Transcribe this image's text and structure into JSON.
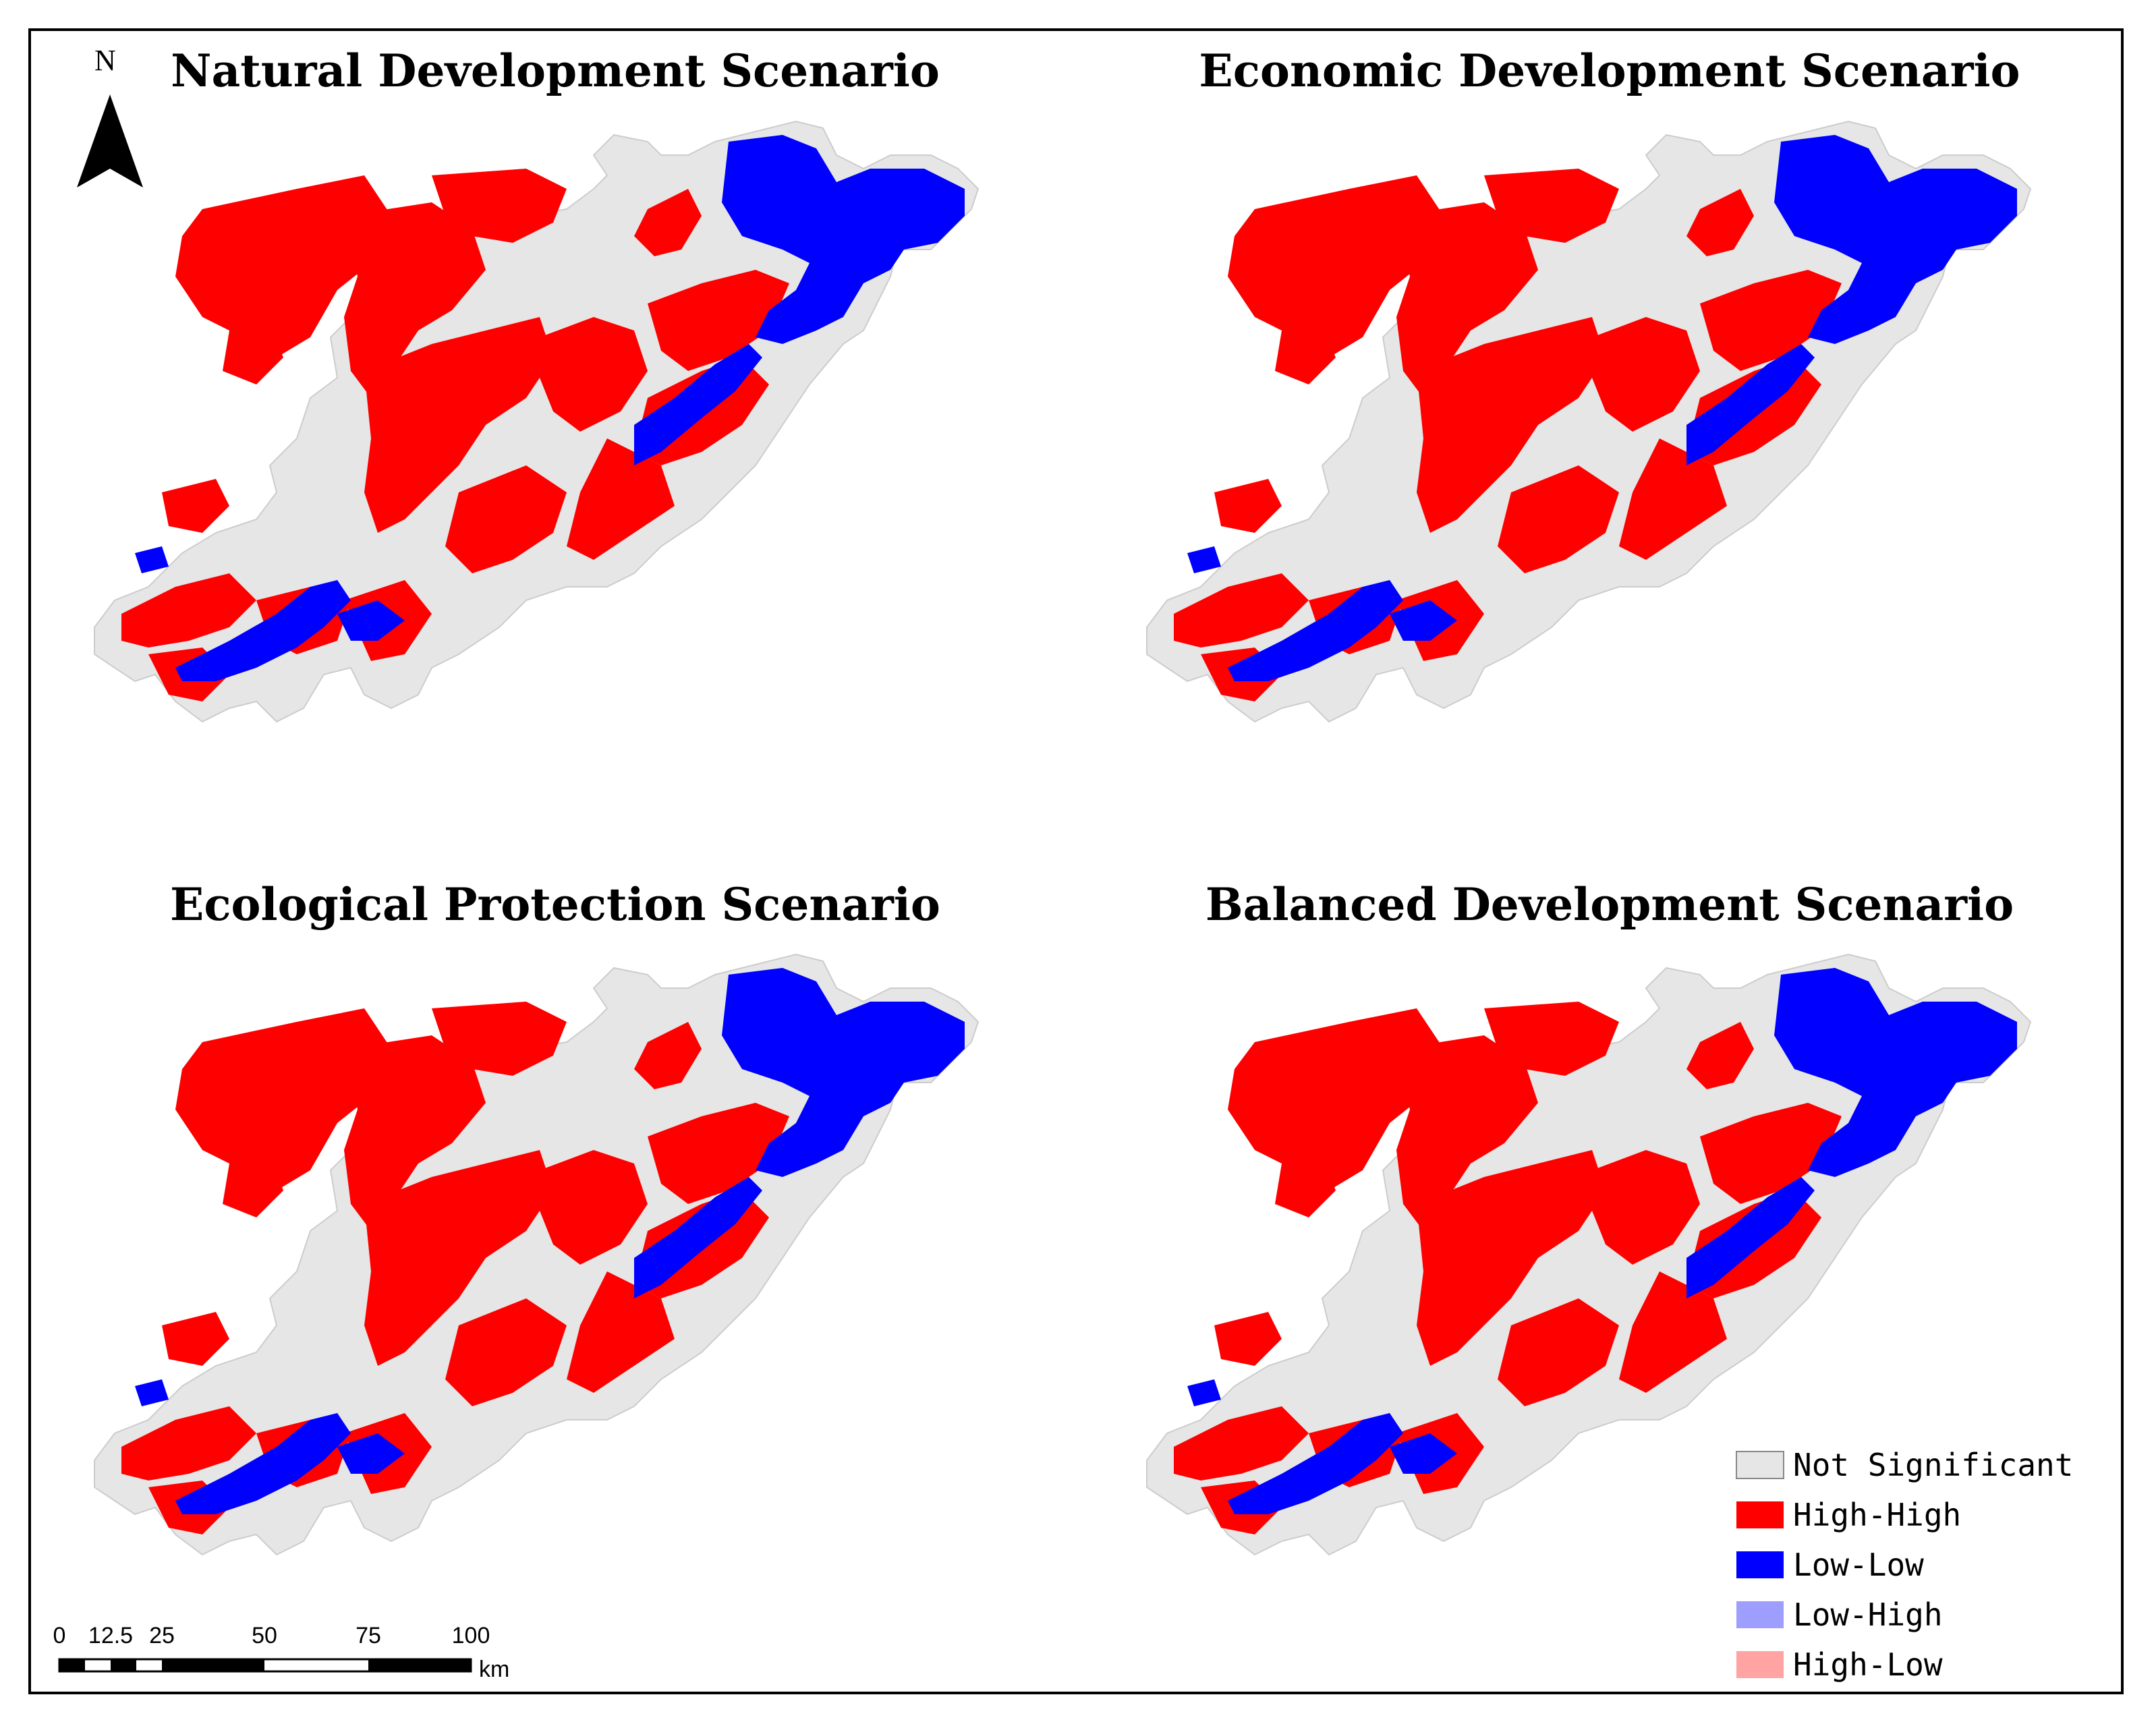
{
  "panels": [
    {
      "title": "Natural Development Scenario"
    },
    {
      "title": "Economic Development Scenario"
    },
    {
      "title": "Ecological Protection Scenario"
    },
    {
      "title": "Balanced Development Scenario"
    }
  ],
  "north_arrow": {
    "label": "N"
  },
  "legend": {
    "items": [
      {
        "label": "Not Significant",
        "color": "#e6e6e6"
      },
      {
        "label": "High-High",
        "color": "#ff0000"
      },
      {
        "label": "Low-Low",
        "color": "#0000ff"
      },
      {
        "label": "Low-High",
        "color": "#9e9eff"
      },
      {
        "label": "High-Low",
        "color": "#ffa3a3"
      }
    ]
  },
  "scale_bar": {
    "ticks": [
      "0",
      "12.5",
      "25",
      "50",
      "75",
      "100"
    ],
    "unit": "km"
  },
  "colors": {
    "not_significant": "#e6e6e6",
    "high_high": "#ff0000",
    "low_low": "#0000ff",
    "outline": "#000000"
  }
}
